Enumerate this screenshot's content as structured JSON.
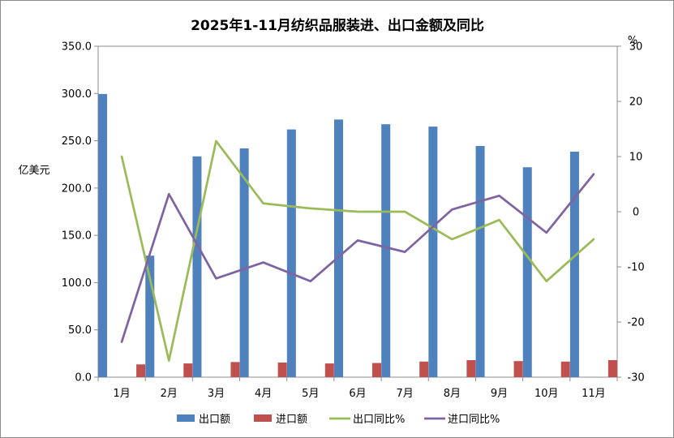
{
  "chart_data": {
    "type": "bar+line",
    "title": "2025年1-11月纺织品服装进、出口金额及同比",
    "ylabel_left": "亿美元",
    "ylabel_right": "%",
    "categories": [
      "1月",
      "2月",
      "3月",
      "4月",
      "5月",
      "6月",
      "7月",
      "8月",
      "9月",
      "10月",
      "11月"
    ],
    "ylim_left": [
      0,
      350
    ],
    "ylim_right": [
      -30,
      30
    ],
    "yticks_left": [
      "0.0",
      "50.0",
      "100.0",
      "150.0",
      "200.0",
      "250.0",
      "300.0",
      "350.0"
    ],
    "yticks_right": [
      "-30",
      "-20",
      "-10",
      "0",
      "10",
      "20",
      "30"
    ],
    "grid": false,
    "legend_position": "bottom",
    "series": [
      {
        "name": "出口额",
        "kind": "bar",
        "axis": "left",
        "color": "#4f81bd",
        "values": [
          299.5,
          128.5,
          233.5,
          242.0,
          262.0,
          272.5,
          267.5,
          265.0,
          244.5,
          222.0,
          238.5
        ]
      },
      {
        "name": "进口额",
        "kind": "bar",
        "axis": "left",
        "color": "#c0504d",
        "values": [
          13.5,
          14.5,
          16.0,
          15.5,
          14.5,
          15.0,
          16.5,
          18.0,
          17.0,
          16.5,
          18.0
        ]
      },
      {
        "name": "出口同比%",
        "kind": "line",
        "axis": "right",
        "color": "#9bbb59",
        "values": [
          10.0,
          -27.0,
          12.8,
          1.5,
          0.6,
          0.0,
          0.0,
          -5.0,
          -1.5,
          -12.6,
          -5.0
        ]
      },
      {
        "name": "进口同比%",
        "kind": "line",
        "axis": "right",
        "color": "#8064a2",
        "values": [
          -23.6,
          3.2,
          -12.1,
          -9.2,
          -12.6,
          -5.2,
          -7.3,
          0.4,
          2.9,
          -3.8,
          6.8
        ]
      }
    ]
  }
}
